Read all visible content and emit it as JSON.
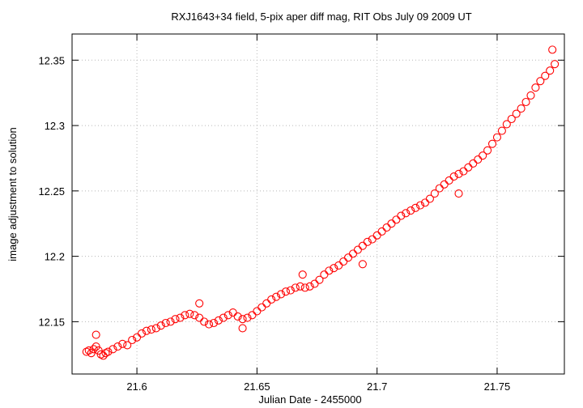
{
  "chart_data": {
    "type": "scatter",
    "title": "RXJ1643+34 field,  5-pix aper diff mag, RIT Obs July 09 2009 UT",
    "xlabel": "Julian Date - 2455000",
    "ylabel": "image adjustment to solution",
    "xlim": [
      21.573,
      21.778
    ],
    "ylim": [
      12.11,
      12.37
    ],
    "xticks": [
      21.6,
      21.65,
      21.7,
      21.75
    ],
    "xtick_labels": [
      "21.6",
      "21.65",
      "21.7",
      "21.75"
    ],
    "yticks": [
      12.15,
      12.2,
      12.25,
      12.3,
      12.35
    ],
    "ytick_labels": [
      "12.15",
      "12.2",
      "12.25",
      "12.3",
      "12.35"
    ],
    "grid": true,
    "legend": "none",
    "marker": "open-circle",
    "marker_color": "#ff0000",
    "series": [
      {
        "x": [
          21.579,
          21.58,
          21.581,
          21.582,
          21.583,
          21.584,
          21.585,
          21.586,
          21.587,
          21.588,
          21.59,
          21.592,
          21.594,
          21.596,
          21.598,
          21.6,
          21.602,
          21.604,
          21.606,
          21.608,
          21.61,
          21.612,
          21.614,
          21.616,
          21.618,
          21.62,
          21.622,
          21.624,
          21.626,
          21.628,
          21.63,
          21.632,
          21.634,
          21.636,
          21.638,
          21.64,
          21.642,
          21.644,
          21.646,
          21.648,
          21.65,
          21.652,
          21.654,
          21.656,
          21.658,
          21.66,
          21.662,
          21.664,
          21.666,
          21.668,
          21.67,
          21.672,
          21.674,
          21.676,
          21.678,
          21.68,
          21.682,
          21.684,
          21.686,
          21.688,
          21.69,
          21.692,
          21.694,
          21.696,
          21.698,
          21.7,
          21.702,
          21.704,
          21.706,
          21.708,
          21.71,
          21.712,
          21.714,
          21.716,
          21.718,
          21.72,
          21.722,
          21.724,
          21.726,
          21.728,
          21.73,
          21.732,
          21.734,
          21.736,
          21.738,
          21.74,
          21.742,
          21.744,
          21.746,
          21.748,
          21.75,
          21.752,
          21.754,
          21.756,
          21.758,
          21.76,
          21.762,
          21.764,
          21.766,
          21.768,
          21.77,
          21.772,
          21.774
        ],
        "y": [
          12.127,
          12.128,
          12.126,
          12.129,
          12.131,
          12.128,
          12.125,
          12.124,
          12.126,
          12.127,
          12.129,
          12.131,
          12.133,
          12.132,
          12.136,
          12.138,
          12.141,
          12.143,
          12.144,
          12.145,
          12.147,
          12.149,
          12.15,
          12.152,
          12.153,
          12.155,
          12.156,
          12.155,
          12.153,
          12.15,
          12.148,
          12.149,
          12.151,
          12.153,
          12.155,
          12.157,
          12.154,
          12.152,
          12.153,
          12.155,
          12.158,
          12.161,
          12.164,
          12.167,
          12.169,
          12.171,
          12.173,
          12.174,
          12.176,
          12.177,
          12.176,
          12.177,
          12.179,
          12.182,
          12.186,
          12.189,
          12.191,
          12.193,
          12.196,
          12.199,
          12.202,
          12.205,
          12.208,
          12.211,
          12.213,
          12.216,
          12.219,
          12.222,
          12.225,
          12.228,
          12.231,
          12.233,
          12.235,
          12.237,
          12.239,
          12.241,
          12.244,
          12.248,
          12.252,
          12.255,
          12.258,
          12.261,
          12.263,
          12.265,
          12.268,
          12.271,
          12.274,
          12.277,
          12.281,
          12.286,
          12.291,
          12.296,
          12.301,
          12.305,
          12.309,
          12.313,
          12.318,
          12.323,
          12.329,
          12.334,
          12.338,
          12.342,
          12.347
        ]
      }
    ],
    "outliers": {
      "x": [
        21.583,
        21.626,
        21.644,
        21.669,
        21.694,
        21.734,
        21.773
      ],
      "y": [
        12.14,
        12.164,
        12.145,
        12.186,
        12.194,
        12.248,
        12.358
      ]
    }
  }
}
